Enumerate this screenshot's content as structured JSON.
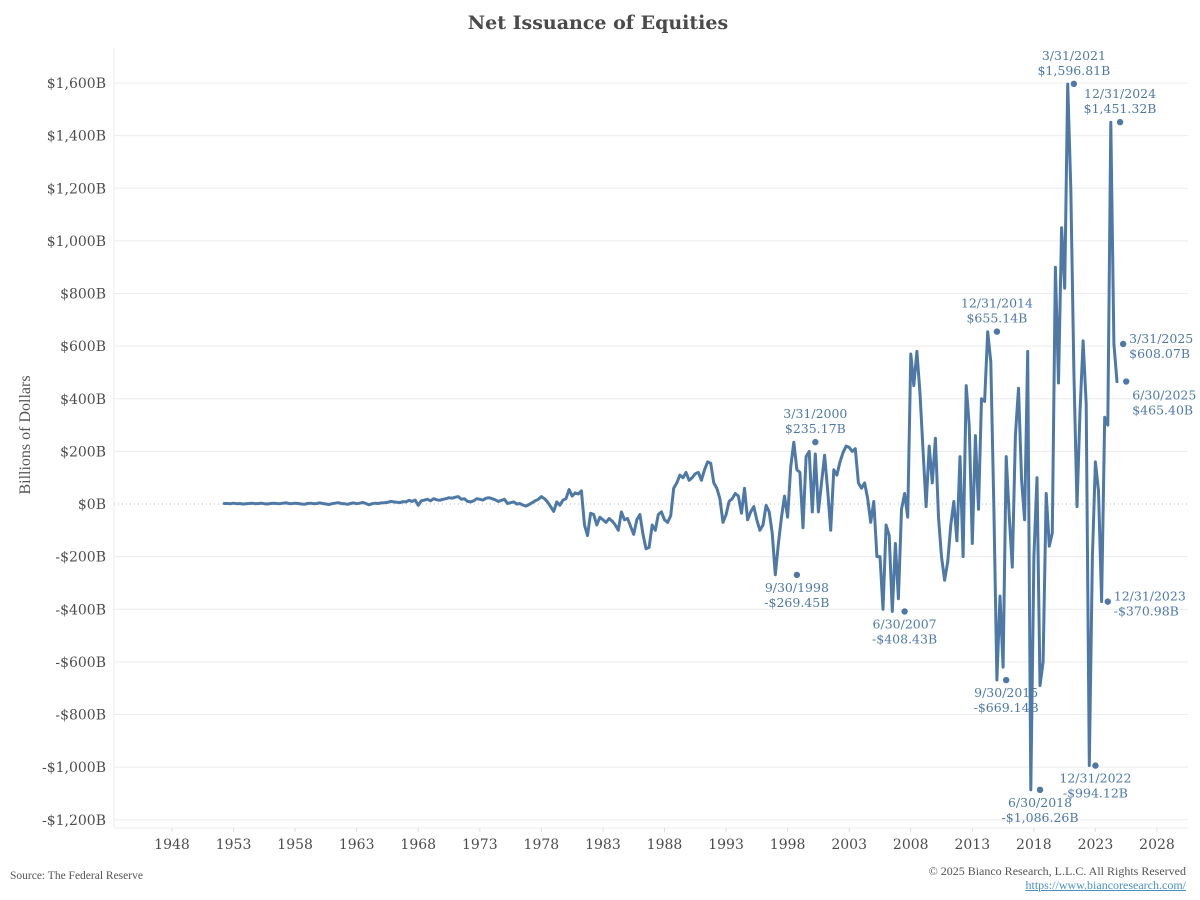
{
  "chart_data": {
    "type": "line",
    "title": "Net Issuance of Equities",
    "xlabel": "",
    "ylabel": "Billions of Dollars",
    "ylim": [
      -1250,
      1700
    ],
    "xlim": [
      1944,
      2030
    ],
    "grid": true,
    "legend": "none",
    "y_ticks": [
      {
        "value": 1600,
        "label": "$1,600B"
      },
      {
        "value": 1400,
        "label": "$1,400B"
      },
      {
        "value": 1200,
        "label": "$1,200B"
      },
      {
        "value": 1000,
        "label": "$1,000B"
      },
      {
        "value": 800,
        "label": "$800B"
      },
      {
        "value": 600,
        "label": "$600B"
      },
      {
        "value": 400,
        "label": "$400B"
      },
      {
        "value": 200,
        "label": "$200B"
      },
      {
        "value": 0,
        "label": "$0B"
      },
      {
        "value": -200,
        "label": "-$200B"
      },
      {
        "value": -400,
        "label": "-$400B"
      },
      {
        "value": -600,
        "label": "-$600B"
      },
      {
        "value": -800,
        "label": "-$800B"
      },
      {
        "value": -1000,
        "label": "-$1,000B"
      },
      {
        "value": -1200,
        "label": "-$1,200B"
      }
    ],
    "x_ticks": [
      {
        "value": 1948,
        "label": "1948"
      },
      {
        "value": 1953,
        "label": "1953"
      },
      {
        "value": 1958,
        "label": "1958"
      },
      {
        "value": 1963,
        "label": "1963"
      },
      {
        "value": 1968,
        "label": "1968"
      },
      {
        "value": 1973,
        "label": "1973"
      },
      {
        "value": 1978,
        "label": "1978"
      },
      {
        "value": 1983,
        "label": "1983"
      },
      {
        "value": 1988,
        "label": "1988"
      },
      {
        "value": 1993,
        "label": "1993"
      },
      {
        "value": 1998,
        "label": "1998"
      },
      {
        "value": 2003,
        "label": "2003"
      },
      {
        "value": 2008,
        "label": "2008"
      },
      {
        "value": 2013,
        "label": "2013"
      },
      {
        "value": 2018,
        "label": "2018"
      },
      {
        "value": 2023,
        "label": "2023"
      },
      {
        "value": 2028,
        "label": "2028"
      }
    ],
    "series": [
      {
        "name": "Net Issuance of Equities",
        "color": "#4e79a7",
        "start": 1952.0,
        "step": 0.25,
        "values": [
          2,
          2,
          1,
          3,
          1,
          2,
          0,
          1,
          2,
          3,
          1,
          2,
          3,
          1,
          0,
          2,
          3,
          2,
          1,
          3,
          4,
          2,
          1,
          3,
          2,
          0,
          -1,
          2,
          3,
          1,
          2,
          4,
          2,
          0,
          -2,
          1,
          3,
          5,
          2,
          1,
          -1,
          2,
          4,
          1,
          3,
          6,
          2,
          -3,
          1,
          3,
          2,
          4,
          5,
          6,
          10,
          8,
          7,
          5,
          9,
          8,
          14,
          10,
          15,
          -5,
          12,
          15,
          18,
          12,
          20,
          16,
          14,
          18,
          20,
          24,
          22,
          26,
          28,
          18,
          20,
          10,
          8,
          12,
          20,
          18,
          15,
          22,
          24,
          20,
          16,
          10,
          14,
          18,
          2,
          5,
          8,
          0,
          2,
          -4,
          -8,
          -2,
          5,
          12,
          18,
          28,
          20,
          8,
          -10,
          -28,
          8,
          -5,
          15,
          20,
          55,
          30,
          42,
          38,
          50,
          -80,
          -120,
          -35,
          -40,
          -80,
          -50,
          -60,
          -70,
          -55,
          -65,
          -80,
          -100,
          -30,
          -60,
          -55,
          -85,
          -115,
          -60,
          -40,
          -115,
          -170,
          -165,
          -80,
          -100,
          -40,
          -30,
          -60,
          -70,
          -45,
          60,
          80,
          110,
          100,
          120,
          90,
          100,
          115,
          120,
          90,
          130,
          160,
          155,
          80,
          60,
          20,
          -70,
          -40,
          10,
          20,
          40,
          30,
          -35,
          60,
          -60,
          -30,
          -10,
          -60,
          -100,
          -80,
          -5,
          -30,
          -110,
          -269,
          -150,
          -50,
          30,
          -50,
          140,
          235,
          130,
          120,
          -90,
          180,
          200,
          -30,
          190,
          -30,
          80,
          185,
          55,
          -100,
          130,
          110,
          160,
          195,
          220,
          215,
          200,
          210,
          80,
          60,
          80,
          20,
          -70,
          10,
          -200,
          -200,
          -400,
          -80,
          -120,
          -408,
          -150,
          -360,
          -20,
          40,
          -50,
          570,
          450,
          580,
          420,
          200,
          -10,
          220,
          80,
          250,
          -50,
          -200,
          -290,
          -220,
          -80,
          10,
          -140,
          180,
          -200,
          450,
          300,
          -150,
          260,
          -20,
          400,
          390,
          655,
          540,
          -20,
          -669,
          -350,
          -620,
          180,
          -50,
          -240,
          260,
          440,
          90,
          -60,
          580,
          -1086,
          -200,
          100,
          -690,
          -600,
          40,
          -160,
          -110,
          900,
          460,
          1050,
          820,
          1596,
          1200,
          500,
          -10,
          350,
          620,
          380,
          -994,
          -200,
          160,
          50,
          -371,
          330,
          300,
          1451,
          608,
          465
        ]
      }
    ],
    "annotations": [
      {
        "date": "3/31/2000",
        "value": 235.17,
        "label_date": "3/31/2000",
        "label_value": "$235.17B",
        "position": "above"
      },
      {
        "date": "9/30/1998",
        "value": -269.45,
        "label_date": "9/30/1998",
        "label_value": "-$269.45B",
        "position": "below"
      },
      {
        "date": "6/30/2007",
        "value": -408.43,
        "label_date": "6/30/2007",
        "label_value": "-$408.43B",
        "position": "below"
      },
      {
        "date": "12/31/2014",
        "value": 655.14,
        "label_date": "12/31/2014",
        "label_value": "$655.14B",
        "position": "above"
      },
      {
        "date": "9/30/2015",
        "value": -669.14,
        "label_date": "9/30/2015",
        "label_value": "-$669.14B",
        "position": "below"
      },
      {
        "date": "6/30/2018",
        "value": -1086.26,
        "label_date": "6/30/2018",
        "label_value": "-$1,086.26B",
        "position": "below"
      },
      {
        "date": "3/31/2021",
        "value": 1596.81,
        "label_date": "3/31/2021",
        "label_value": "$1,596.81B",
        "position": "above"
      },
      {
        "date": "12/31/2022",
        "value": -994.12,
        "label_date": "12/31/2022",
        "label_value": "-$994.12B",
        "position": "below"
      },
      {
        "date": "12/31/2023",
        "value": -370.98,
        "label_date": "12/31/2023",
        "label_value": "-$370.98B",
        "position": "right"
      },
      {
        "date": "12/31/2024",
        "value": 1451.32,
        "label_date": "12/31/2024",
        "label_value": "$1,451.32B",
        "position": "above"
      },
      {
        "date": "3/31/2025",
        "value": 608.07,
        "label_date": "3/31/2025",
        "label_value": "$608.07B",
        "position": "right"
      },
      {
        "date": "6/30/2025",
        "value": 465.4,
        "label_date": "6/30/2025",
        "label_value": "$465.40B",
        "position": "below-right"
      }
    ]
  },
  "footer": {
    "source": "Source: The Federal Reserve",
    "copyright": "© 2025 Bianco Research, L.L.C. All Rights Reserved",
    "link": "https://www.biancoresearch.com/"
  }
}
